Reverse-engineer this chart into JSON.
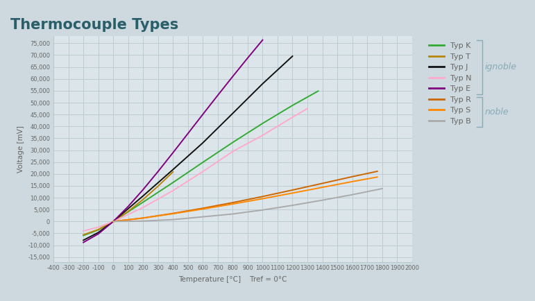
{
  "title": "Thermocouple Types",
  "xlabel": "Temperature [°C]    Tref = 0°C",
  "ylabel": "Voltage [mV]",
  "background_color": "#cdd9de",
  "plot_bg_color": "#dce6ea",
  "grid_color": "#b8c8ce",
  "title_color": "#2a5f6a",
  "axis_label_color": "#666666",
  "xlim": [
    -400,
    2000
  ],
  "ylim": [
    -17000,
    78000
  ],
  "xticks": [
    -400,
    -300,
    -200,
    -100,
    0,
    100,
    200,
    300,
    400,
    500,
    600,
    700,
    800,
    900,
    1000,
    1100,
    1200,
    1300,
    1400,
    1500,
    1600,
    1700,
    1800,
    1900,
    2000
  ],
  "yticks": [
    -15000,
    -10000,
    -5000,
    0,
    5000,
    10000,
    15000,
    20000,
    25000,
    30000,
    35000,
    40000,
    45000,
    50000,
    55000,
    60000,
    65000,
    70000,
    75000
  ],
  "series": [
    {
      "name": "Typ K",
      "color": "#33aa33",
      "temps": [
        -200,
        -100,
        0,
        200,
        400,
        600,
        800,
        1000,
        1200,
        1372
      ],
      "volts": [
        -5891,
        -3554,
        0,
        8138,
        16397,
        24905,
        33275,
        41276,
        48838,
        54886
      ]
    },
    {
      "name": "Typ T",
      "color": "#b8860b",
      "temps": [
        -200,
        -100,
        0,
        100,
        200,
        300,
        400
      ],
      "volts": [
        -5603,
        -3379,
        0,
        4279,
        9288,
        14862,
        20872
      ]
    },
    {
      "name": "Typ J",
      "color": "#111111",
      "temps": [
        -200,
        -100,
        0,
        200,
        400,
        600,
        800,
        1000,
        1200
      ],
      "volts": [
        -7890,
        -4633,
        0,
        10779,
        21848,
        33102,
        45494,
        57953,
        69553
      ]
    },
    {
      "name": "Typ N",
      "color": "#ffaacc",
      "temps": [
        -200,
        -100,
        0,
        200,
        400,
        600,
        800,
        1000,
        1200,
        1300
      ],
      "volts": [
        -3990,
        -2407,
        0,
        5913,
        12974,
        21006,
        29454,
        36256,
        43846,
        47513
      ]
    },
    {
      "name": "Typ E",
      "color": "#800080",
      "temps": [
        -200,
        -100,
        0,
        100,
        200,
        300,
        400,
        500,
        600,
        700,
        800,
        900,
        1000
      ],
      "volts": [
        -8825,
        -5237,
        0,
        6319,
        13421,
        21036,
        28946,
        37005,
        45093,
        53112,
        61017,
        68787,
        76373
      ]
    },
    {
      "name": "Typ R",
      "color": "#cc6600",
      "temps": [
        0,
        200,
        400,
        600,
        800,
        1000,
        1200,
        1400,
        1600,
        1768
      ],
      "volts": [
        0,
        1469,
        3408,
        5583,
        7950,
        10506,
        13228,
        16035,
        18849,
        21101
      ]
    },
    {
      "name": "Typ S",
      "color": "#ff8800",
      "temps": [
        0,
        200,
        400,
        600,
        800,
        1000,
        1200,
        1400,
        1600,
        1768
      ],
      "volts": [
        0,
        1441,
        3259,
        5239,
        7345,
        9587,
        11951,
        14373,
        16777,
        18693
      ]
    },
    {
      "name": "Typ B",
      "color": "#aaaaaa",
      "temps": [
        0,
        200,
        400,
        600,
        800,
        1000,
        1200,
        1400,
        1600,
        1800
      ],
      "volts": [
        0,
        178,
        787,
        1962,
        3154,
        4834,
        6786,
        8956,
        11263,
        13820
      ]
    }
  ],
  "ignoble_label": "ignoble",
  "noble_label": "noble",
  "label_color": "#88aab8"
}
